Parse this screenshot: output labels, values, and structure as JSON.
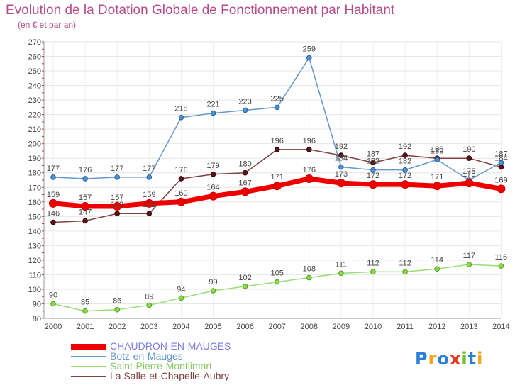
{
  "chart_data": {
    "type": "line",
    "title": "Evolution de la Dotation Globale de Fonctionnement par Habitant",
    "subtitle": "(en € et par an)",
    "xlabel": "",
    "ylabel": "",
    "ylim": [
      80,
      270
    ],
    "yticks": [
      80,
      90,
      100,
      110,
      120,
      130,
      140,
      150,
      160,
      170,
      180,
      190,
      200,
      210,
      220,
      230,
      240,
      250,
      260,
      270
    ],
    "categories": [
      "2000",
      "2001",
      "2002",
      "2003",
      "2004",
      "2005",
      "2006",
      "2007",
      "2008",
      "2009",
      "2010",
      "2011",
      "2012",
      "2013",
      "2014"
    ],
    "series": [
      {
        "name": "Botz-en-Mauges",
        "color": "#6699cc",
        "point_color": "#4a90d9",
        "values": [
          177,
          176,
          177,
          177,
          218,
          221,
          223,
          225,
          259,
          184,
          182,
          182,
          189,
          175,
          187
        ]
      },
      {
        "name": "La Salle-et-Chapelle-Aubry",
        "color": "#804040",
        "point_color": "#5a1515",
        "values": [
          146,
          147,
          152,
          152,
          176,
          179,
          180,
          196,
          196,
          192,
          187,
          192,
          190,
          190,
          184
        ]
      },
      {
        "name": "Saint-Pierre-Montlimart",
        "color": "#99dd77",
        "point_color": "#88dd44",
        "values": [
          90,
          85,
          86,
          89,
          94,
          99,
          102,
          105,
          108,
          111,
          112,
          112,
          114,
          117,
          116
        ]
      },
      {
        "name": "CHAUDRON-EN-MAUGES",
        "color": "#ee0000",
        "point_color": "#ee0000",
        "values": [
          159,
          157,
          157,
          159,
          160,
          164,
          167,
          171,
          176,
          173,
          172,
          172,
          171,
          173,
          169
        ]
      }
    ],
    "legend_order": [
      "CHAUDRON-EN-MAUGES",
      "Botz-en-Mauges",
      "Saint-Pierre-Montlimart",
      "La Salle-et-Chapelle-Aubry"
    ],
    "legend_position": "bottom-left"
  },
  "logo": {
    "text": "Proxiti"
  }
}
